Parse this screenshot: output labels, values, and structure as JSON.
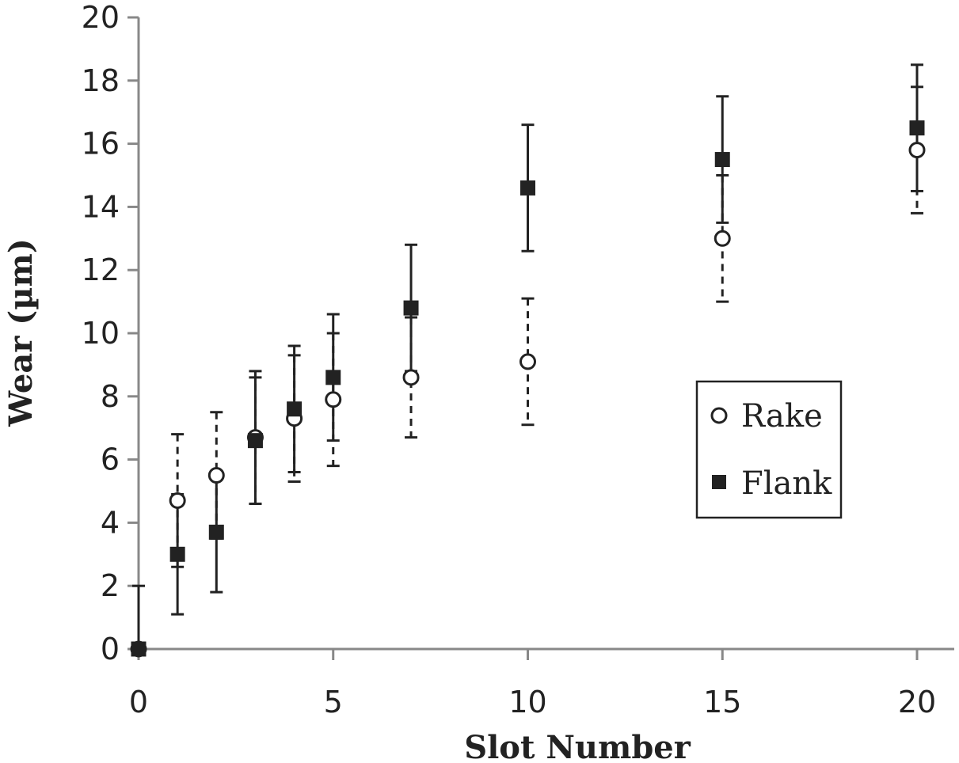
{
  "chart_data": {
    "type": "scatter",
    "xlabel": "Slot Number",
    "ylabel": "Wear (µm)",
    "xlim": [
      0,
      20
    ],
    "ylim": [
      0,
      20
    ],
    "x_ticks": [
      "0",
      "5",
      "10",
      "15",
      "20"
    ],
    "y_ticks": [
      "0",
      "2",
      "4",
      "6",
      "8",
      "10",
      "12",
      "14",
      "16",
      "18",
      "20"
    ],
    "grid": false,
    "legend_position": "right",
    "series": [
      {
        "name": "Rake",
        "marker": "open-circle",
        "errorbar_style": "dashed",
        "color": "#222222",
        "points": [
          {
            "x": 0,
            "y": 0,
            "err": 0
          },
          {
            "x": 1,
            "y": 4.7,
            "err": 2.1
          },
          {
            "x": 2,
            "y": 5.5,
            "err": 2.0
          },
          {
            "x": 3,
            "y": 6.7,
            "err": 2.1
          },
          {
            "x": 4,
            "y": 7.3,
            "err": 2.0
          },
          {
            "x": 5,
            "y": 7.9,
            "err": 2.1
          },
          {
            "x": 7,
            "y": 8.6,
            "err": 1.9
          },
          {
            "x": 10,
            "y": 9.1,
            "err": 2.0
          },
          {
            "x": 15,
            "y": 13.0,
            "err": 2.0
          },
          {
            "x": 20,
            "y": 15.8,
            "err": 2.0
          }
        ]
      },
      {
        "name": "Flank",
        "marker": "filled-square",
        "errorbar_style": "solid",
        "color": "#222222",
        "points": [
          {
            "x": 0,
            "y": 0,
            "err": 2.0
          },
          {
            "x": 1,
            "y": 3.0,
            "err": 1.9
          },
          {
            "x": 2,
            "y": 3.7,
            "err": 1.9
          },
          {
            "x": 3,
            "y": 6.6,
            "err": 2.0
          },
          {
            "x": 4,
            "y": 7.6,
            "err": 2.0
          },
          {
            "x": 5,
            "y": 8.6,
            "err": 2.0
          },
          {
            "x": 7,
            "y": 10.8,
            "err": 2.0
          },
          {
            "x": 10,
            "y": 14.6,
            "err": 2.0
          },
          {
            "x": 15,
            "y": 15.5,
            "err": 2.0
          },
          {
            "x": 20,
            "y": 16.5,
            "err": 2.0
          }
        ]
      }
    ]
  }
}
